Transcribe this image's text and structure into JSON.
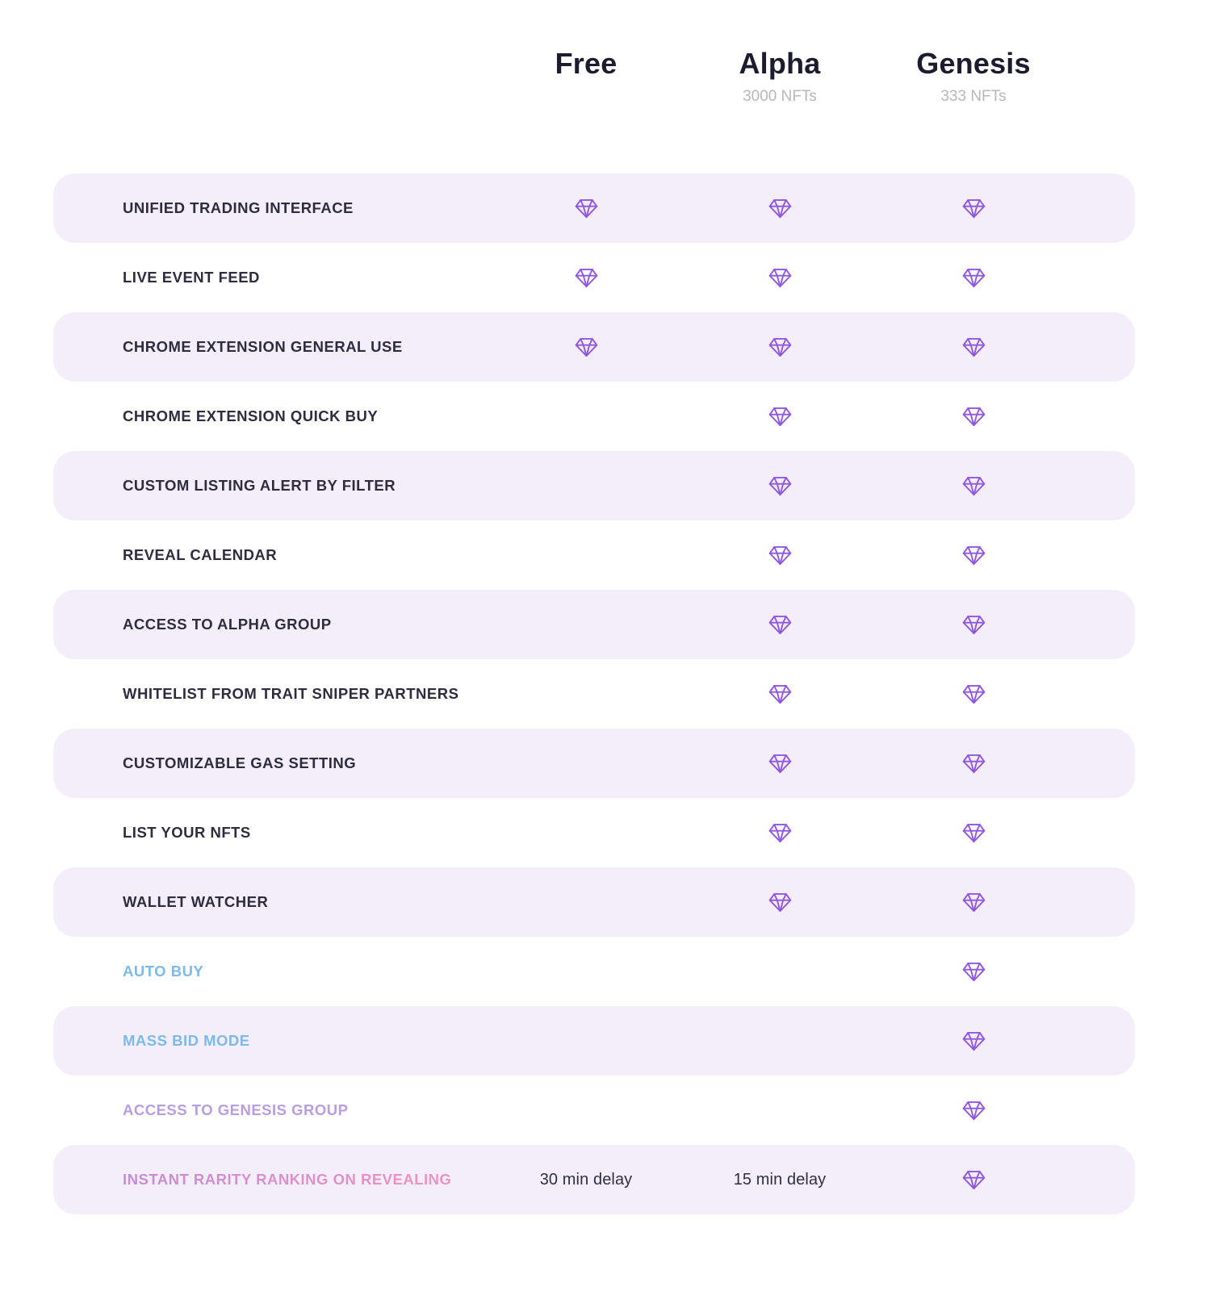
{
  "header": {
    "columns": [
      {
        "label": "Free",
        "subtitle": ""
      },
      {
        "label": "Alpha",
        "subtitle": "3000 NFTs"
      },
      {
        "label": "Genesis",
        "subtitle": "333 NFTs"
      }
    ]
  },
  "colors": {
    "diamond": "#8f57e3",
    "row_shade": "#f4eefb",
    "label_default": "#2d2d3f",
    "label_blue": "#7cbaec",
    "label_purple": "#b79de2",
    "label_pink_from": "#bb8ade",
    "label_pink_to": "#f693bb",
    "header_subtitle": "#b6b7bf"
  },
  "icons": {
    "included": "diamond-gem-icon"
  },
  "rows": [
    {
      "feature": "UNIFIED TRADING INTERFACE",
      "style": "default",
      "cells": [
        "diamond",
        "diamond",
        "diamond"
      ]
    },
    {
      "feature": "LIVE EVENT FEED",
      "style": "default",
      "cells": [
        "diamond",
        "diamond",
        "diamond"
      ]
    },
    {
      "feature": "CHROME EXTENSION GENERAL USE",
      "style": "default",
      "cells": [
        "diamond",
        "diamond",
        "diamond"
      ]
    },
    {
      "feature": "CHROME EXTENSION QUICK BUY",
      "style": "default",
      "cells": [
        "",
        "diamond",
        "diamond"
      ]
    },
    {
      "feature": "CUSTOM LISTING ALERT BY FILTER",
      "style": "default",
      "cells": [
        "",
        "diamond",
        "diamond"
      ]
    },
    {
      "feature": "REVEAL CALENDAR",
      "style": "default",
      "cells": [
        "",
        "diamond",
        "diamond"
      ]
    },
    {
      "feature": "ACCESS TO ALPHA GROUP",
      "style": "default",
      "cells": [
        "",
        "diamond",
        "diamond"
      ]
    },
    {
      "feature": "WHITELIST FROM TRAIT SNIPER PARTNERS",
      "style": "default",
      "cells": [
        "",
        "diamond",
        "diamond"
      ]
    },
    {
      "feature": "CUSTOMIZABLE GAS SETTING",
      "style": "default",
      "cells": [
        "",
        "diamond",
        "diamond"
      ]
    },
    {
      "feature": "LIST YOUR NFTS",
      "style": "default",
      "cells": [
        "",
        "diamond",
        "diamond"
      ]
    },
    {
      "feature": "WALLET WATCHER",
      "style": "default",
      "cells": [
        "",
        "diamond",
        "diamond"
      ]
    },
    {
      "feature": "AUTO BUY",
      "style": "blue",
      "cells": [
        "",
        "",
        "diamond"
      ]
    },
    {
      "feature": "MASS BID MODE",
      "style": "blue",
      "cells": [
        "",
        "",
        "diamond"
      ]
    },
    {
      "feature": "ACCESS TO GENESIS GROUP",
      "style": "purple",
      "cells": [
        "",
        "",
        "diamond"
      ]
    },
    {
      "feature": "INSTANT RARITY RANKING ON REVEALING",
      "style": "pink",
      "cells": [
        "30 min delay",
        "15 min delay",
        "diamond"
      ]
    }
  ]
}
